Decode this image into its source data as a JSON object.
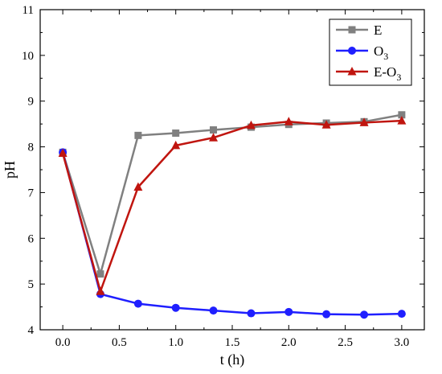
{
  "chart_data": {
    "type": "line",
    "title": "",
    "xlabel": "t (h)",
    "ylabel": "pH",
    "xlim": [
      -0.2,
      3.2
    ],
    "ylim": [
      4,
      11
    ],
    "x_ticks": [
      "0.0",
      "0.5",
      "1.0",
      "1.5",
      "2.0",
      "2.5",
      "3.0"
    ],
    "y_ticks": [
      "4",
      "5",
      "6",
      "7",
      "8",
      "9",
      "10",
      "11"
    ],
    "grid": false,
    "legend_position": "top-right",
    "x": [
      0,
      0.333,
      0.667,
      1.0,
      1.333,
      1.667,
      2.0,
      2.333,
      2.667,
      3.0
    ],
    "series": [
      {
        "name": "E",
        "legend_main": "E",
        "legend_sub": "",
        "legend_tail": "",
        "color": "#808080",
        "marker": "square",
        "values": [
          7.88,
          5.22,
          8.25,
          8.3,
          8.37,
          8.43,
          8.49,
          8.52,
          8.55,
          8.7
        ]
      },
      {
        "name": "O3",
        "legend_main": "O",
        "legend_sub": "3",
        "legend_tail": "",
        "color": "#1f1fff",
        "marker": "circle",
        "values": [
          7.88,
          4.78,
          4.57,
          4.48,
          4.42,
          4.36,
          4.39,
          4.34,
          4.33,
          4.35
        ]
      },
      {
        "name": "E-O3",
        "legend_main": "E-O",
        "legend_sub": "3",
        "legend_tail": "",
        "color": "#c0150f",
        "marker": "triangle",
        "values": [
          7.86,
          4.84,
          7.12,
          8.03,
          8.2,
          8.47,
          8.55,
          8.48,
          8.53,
          8.57
        ]
      }
    ]
  }
}
